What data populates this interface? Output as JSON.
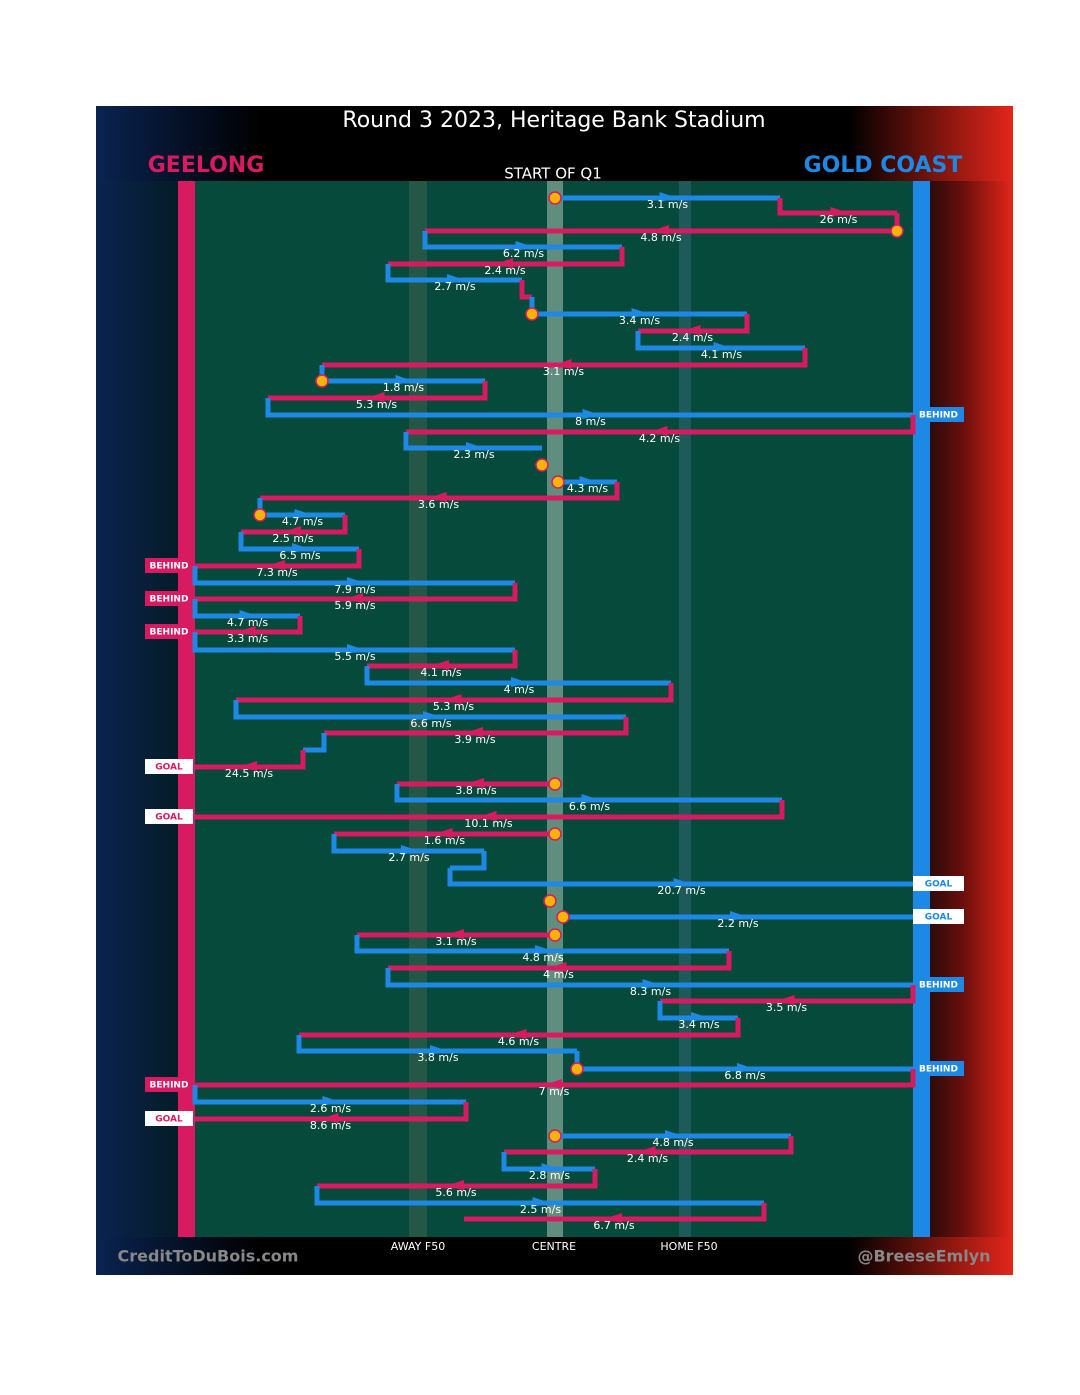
{
  "header": {
    "title": "Round 3 2023, Heritage Bank Stadium",
    "home_team": "GEELONG",
    "away_team": "GOLD COAST",
    "period": "START OF Q1"
  },
  "field_labels": {
    "away_f50": "AWAY F50",
    "centre": "CENTRE",
    "home_f50": "HOME F50"
  },
  "footer": {
    "left": "CreditToDuBois.com",
    "right": "@BreeseEmlyn"
  },
  "events": [
    {
      "speed": "3.1 m/s"
    },
    {
      "speed": "26 m/s"
    },
    {
      "speed": "4.8 m/s"
    },
    {
      "speed": "6.2 m/s"
    },
    {
      "speed": "2.4 m/s"
    },
    {
      "speed": "2.7 m/s"
    },
    {
      "speed": "3.4 m/s"
    },
    {
      "speed": "2.4 m/s"
    },
    {
      "speed": "4.1 m/s"
    },
    {
      "speed": "3.1 m/s"
    },
    {
      "speed": "1.8 m/s"
    },
    {
      "speed": "5.3 m/s"
    },
    {
      "speed": "8 m/s",
      "result": "BEHIND"
    },
    {
      "speed": "4.2 m/s"
    },
    {
      "speed": "2.3 m/s"
    },
    {
      "speed": "4.3 m/s"
    },
    {
      "speed": "3.6 m/s"
    },
    {
      "speed": "4.7 m/s"
    },
    {
      "speed": "2.5 m/s"
    },
    {
      "speed": "6.5 m/s"
    },
    {
      "speed": "7.3 m/s",
      "result": "BEHIND"
    },
    {
      "speed": "7.9 m/s"
    },
    {
      "speed": "5.9 m/s",
      "result": "BEHIND"
    },
    {
      "speed": "4.7 m/s"
    },
    {
      "speed": "3.3 m/s",
      "result": "BEHIND"
    },
    {
      "speed": "5.5 m/s"
    },
    {
      "speed": "4.1 m/s"
    },
    {
      "speed": "4 m/s"
    },
    {
      "speed": "5.3 m/s"
    },
    {
      "speed": "6.6 m/s"
    },
    {
      "speed": "3.9 m/s"
    },
    {
      "speed": "24.5 m/s",
      "result": "GOAL"
    },
    {
      "speed": "3.8 m/s"
    },
    {
      "speed": "6.6 m/s"
    },
    {
      "speed": "10.1 m/s",
      "result": "GOAL"
    },
    {
      "speed": "1.6 m/s"
    },
    {
      "speed": "2.7 m/s"
    },
    {
      "speed": "20.7 m/s",
      "result": "GOAL"
    },
    {
      "speed": "2.2 m/s",
      "result": "GOAL"
    },
    {
      "speed": "3.1 m/s"
    },
    {
      "speed": "4.8 m/s"
    },
    {
      "speed": "4 m/s"
    },
    {
      "speed": "8.3 m/s",
      "result": "BEHIND"
    },
    {
      "speed": "3.5 m/s"
    },
    {
      "speed": "3.4 m/s"
    },
    {
      "speed": "4.6 m/s"
    },
    {
      "speed": "3.8 m/s"
    },
    {
      "speed": "6.8 m/s",
      "result": "BEHIND"
    },
    {
      "speed": "7 m/s",
      "result": "BEHIND"
    },
    {
      "speed": "2.6 m/s"
    },
    {
      "speed": "8.6 m/s",
      "result": "GOAL"
    },
    {
      "speed": "4.8 m/s"
    },
    {
      "speed": "2.4 m/s"
    },
    {
      "speed": "2.8 m/s"
    },
    {
      "speed": "5.6 m/s"
    },
    {
      "speed": "2.5 m/s"
    },
    {
      "speed": "6.7 m/s"
    }
  ]
}
